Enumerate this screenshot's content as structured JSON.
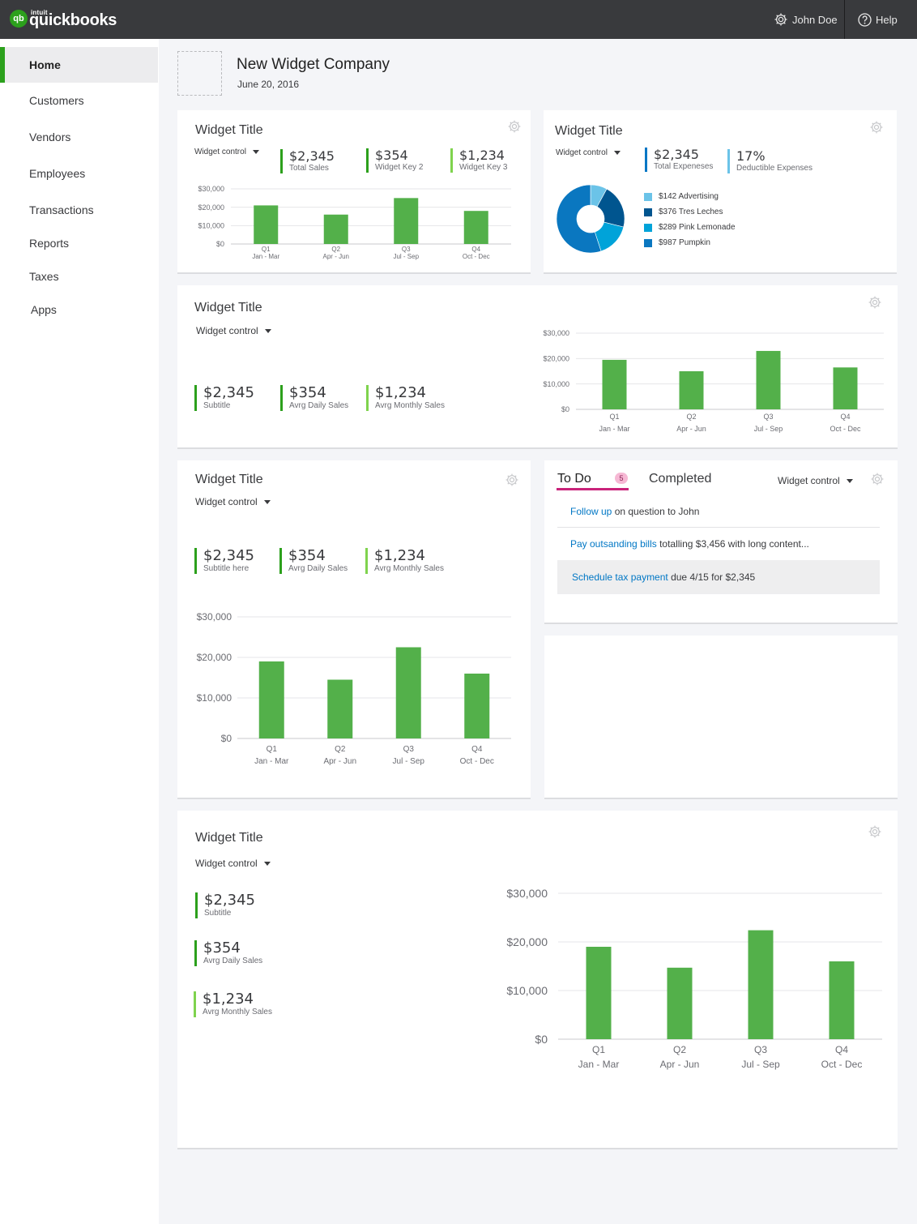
{
  "header": {
    "logo_intuit": "intuit",
    "logo_word": "quickbooks",
    "logo_badge": "qb",
    "user_label": "John Doe",
    "help_label": "Help",
    "user_icon": "gear-icon",
    "help_icon": "help-circle-icon"
  },
  "sidebar": {
    "items": [
      {
        "label": "Home",
        "active": true
      },
      {
        "label": "Customers"
      },
      {
        "label": "Vendors"
      },
      {
        "label": "Employees"
      },
      {
        "label": "Transactions"
      },
      {
        "label": "Reports"
      },
      {
        "label": "Taxes"
      },
      {
        "label": "Apps"
      }
    ]
  },
  "company": {
    "name": "New Widget Company",
    "date": "June 20, 2016"
  },
  "colors": {
    "bar": "#53b04a",
    "accent_green": "#2ca01c",
    "lime": "#7fd34e",
    "link": "#0077c5",
    "todo_underline": "#c9237a",
    "badge": "#f6b8d4"
  },
  "widget1": {
    "title": "Widget Title",
    "control": "Widget control",
    "kpis": [
      {
        "value": "$2,345",
        "label": "Total Sales"
      },
      {
        "value": "$354",
        "label": "Widget Key 2"
      },
      {
        "value": "$1,234",
        "label": "Widget Key 3"
      }
    ]
  },
  "widget2": {
    "title": "Widget Title",
    "control": "Widget control",
    "kpis": [
      {
        "value": "$2,345",
        "label": "Total Expeneses"
      },
      {
        "value": "17%",
        "label": "Deductible Expenses"
      }
    ],
    "legend": [
      {
        "label": "$142 Advertising",
        "color": "#6bc3e8"
      },
      {
        "label": "$376 Tres Leches",
        "color": "#00558f"
      },
      {
        "label": "$289 Pink Lemonade",
        "color": "#00a3d9"
      },
      {
        "label": "$987 Pumpkin",
        "color": "#0a77c0"
      }
    ]
  },
  "widget3": {
    "title": "Widget Title",
    "control": "Widget control",
    "kpis": [
      {
        "value": "$2,345",
        "label": "Subtitle"
      },
      {
        "value": "$354",
        "label": "Avrg Daily Sales"
      },
      {
        "value": "$1,234",
        "label": "Avrg Monthly Sales"
      }
    ]
  },
  "widget4": {
    "title": "Widget Title",
    "control": "Widget control",
    "kpis": [
      {
        "value": "$2,345",
        "label": "Subtitle here"
      },
      {
        "value": "$354",
        "label": "Avrg Daily Sales"
      },
      {
        "value": "$1,234",
        "label": "Avrg Monthly Sales"
      }
    ]
  },
  "todo": {
    "tab_todo": "To Do",
    "badge": "5",
    "tab_completed": "Completed",
    "control": "Widget control",
    "items": [
      {
        "link": "Follow up",
        "text": " on question to John"
      },
      {
        "link": "Pay outsanding bills",
        "text": " totalling $3,456 with long content..."
      },
      {
        "link": "Schedule tax payment",
        "text": " due 4/15 for $2,345"
      }
    ]
  },
  "widget6": {
    "title": "Widget Title",
    "control": "Widget control",
    "kpis": [
      {
        "value": "$2,345",
        "label": "Subtitle"
      },
      {
        "value": "$354",
        "label": "Avrg Daily Sales"
      },
      {
        "value": "$1,234",
        "label": "Avrg Monthly Sales"
      }
    ]
  },
  "chart_data": [
    {
      "type": "bar",
      "categories": [
        "Q1",
        "Q2",
        "Q3",
        "Q4"
      ],
      "sublabels": [
        "Jan - Mar",
        "Apr - Jun",
        "Jul - Sep",
        "Oct - Dec"
      ],
      "values": [
        21000,
        16000,
        25000,
        18000
      ],
      "ylim": [
        0,
        30000
      ],
      "yticks": [
        "$0",
        "$10,000",
        "$20,000",
        "$30,000"
      ],
      "grid": true
    },
    {
      "type": "pie",
      "categories": [
        "$142 Advertising",
        "$376 Tres Leches",
        "$289 Pink Lemonade",
        "$987 Pumpkin"
      ],
      "values": [
        142,
        376,
        289,
        987
      ],
      "donut": true
    },
    {
      "type": "bar",
      "categories": [
        "Q1",
        "Q2",
        "Q3",
        "Q4"
      ],
      "sublabels": [
        "Jan - Mar",
        "Apr - Jun",
        "Jul - Sep",
        "Oct - Dec"
      ],
      "values": [
        19500,
        15000,
        23000,
        16500
      ],
      "ylim": [
        0,
        30000
      ],
      "yticks": [
        "$0",
        "$10,000",
        "$20,000",
        "$30,000"
      ],
      "grid": true
    },
    {
      "type": "bar",
      "categories": [
        "Q1",
        "Q2",
        "Q3",
        "Q4"
      ],
      "sublabels": [
        "Jan - Mar",
        "Apr - Jun",
        "Jul - Sep",
        "Oct - Dec"
      ],
      "values": [
        19000,
        14500,
        22500,
        16000
      ],
      "ylim": [
        0,
        30000
      ],
      "yticks": [
        "$0",
        "$10,000",
        "$20,000",
        "$30,000"
      ],
      "grid": true
    },
    {
      "type": "bar",
      "categories": [
        "Q1",
        "Q2",
        "Q3",
        "Q4"
      ],
      "sublabels": [
        "Jan - Mar",
        "Apr - Jun",
        "Jul - Sep",
        "Oct - Dec"
      ],
      "values": [
        19000,
        14700,
        22400,
        16000
      ],
      "ylim": [
        0,
        30000
      ],
      "yticks": [
        "$0",
        "$10,000",
        "$20,000",
        "$30,000"
      ],
      "grid": true
    }
  ]
}
